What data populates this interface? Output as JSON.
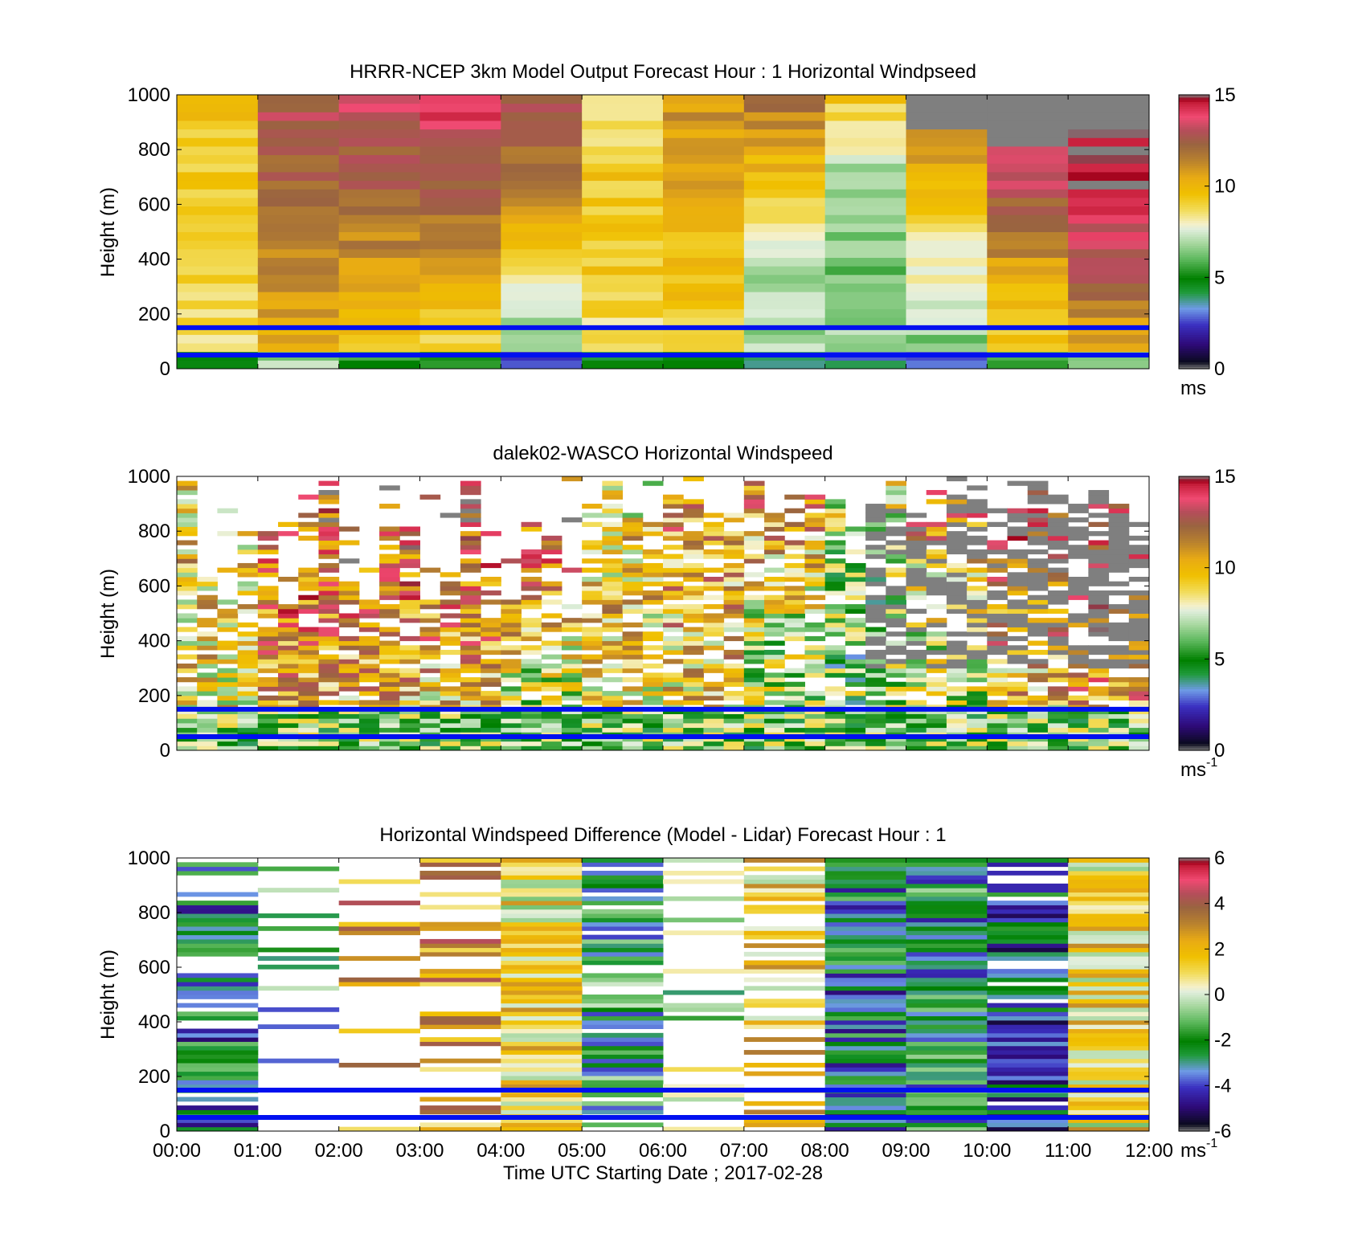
{
  "chart_data": [
    {
      "type": "heatmap",
      "title": "HRRR-NCEP 3km Model Output   Forecast Hour : 1 Horizontal Windpseed",
      "xlabel": "",
      "ylabel": "Height (m)",
      "xlim": [
        0,
        12
      ],
      "ylim": [
        0,
        1000
      ],
      "y_ticks": [
        0,
        200,
        400,
        600,
        800,
        1000
      ],
      "x_tick_labels_shown": false,
      "colorbar": {
        "min": 0,
        "max": 15,
        "ticks": [
          0,
          5,
          10,
          15
        ],
        "unit": "ms",
        "unit_sup": ""
      },
      "reference_lines_m": [
        150,
        50
      ],
      "reference_line_color": "#0010f0",
      "colormap": "speed",
      "grid": "hourly",
      "seed": 11
    },
    {
      "type": "heatmap",
      "title": "dalek02-WASCO  Horizontal Windspeed",
      "xlabel": "",
      "ylabel": "Height (m)",
      "xlim": [
        0,
        12
      ],
      "ylim": [
        0,
        1000
      ],
      "y_ticks": [
        0,
        200,
        400,
        600,
        800,
        1000
      ],
      "x_tick_labels_shown": false,
      "colorbar": {
        "min": 0,
        "max": 15,
        "ticks": [
          0,
          5,
          10,
          15
        ],
        "unit": "ms",
        "unit_sup": "-1"
      },
      "reference_lines_m": [
        150,
        50
      ],
      "reference_line_color": "#0010f0",
      "colormap": "speed",
      "grid": "lidar",
      "seed": 23
    },
    {
      "type": "heatmap",
      "title": "Horizontal Windspeed Difference (Model - Lidar) Forecast Hour : 1",
      "xlabel": "Time UTC  Starting Date ; 2017-02-28",
      "ylabel": "Height (m)",
      "xlim": [
        0,
        12
      ],
      "ylim": [
        0,
        1000
      ],
      "y_ticks": [
        0,
        200,
        400,
        600,
        800,
        1000
      ],
      "x_tick_labels": [
        "00:00",
        "01:00",
        "02:00",
        "03:00",
        "04:00",
        "05:00",
        "06:00",
        "07:00",
        "08:00",
        "09:00",
        "10:00",
        "11:00",
        "12:00"
      ],
      "colorbar": {
        "min": -6,
        "max": 6,
        "ticks": [
          -6,
          -4,
          -2,
          0,
          2,
          4,
          6
        ],
        "unit": "ms",
        "unit_sup": "-1"
      },
      "reference_lines_m": [
        150,
        50
      ],
      "reference_line_color": "#0010f0",
      "colormap": "diff",
      "grid": "hourly-sparse",
      "seed": 37
    }
  ]
}
